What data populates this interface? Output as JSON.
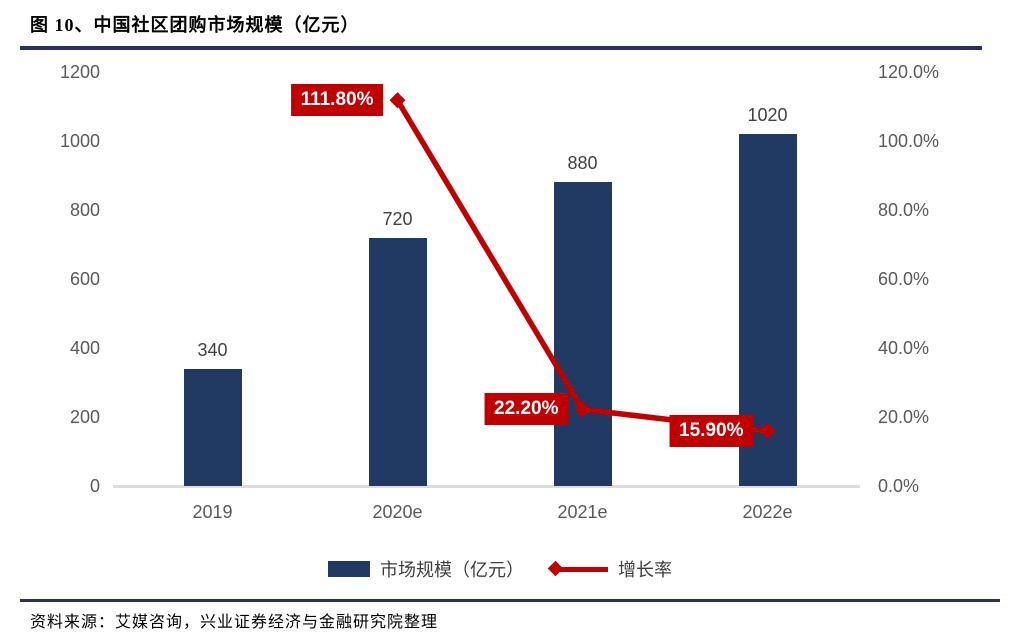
{
  "figure": {
    "title": "图 10、中国社区团购市场规模（亿元）",
    "source": "资料来源：艾媒咨询，兴业证券经济与金融研究院整理"
  },
  "colors": {
    "bar": "#213A63",
    "line": "#C00000",
    "rule": "#2B2F5E",
    "axis_line": "#DCDCDC",
    "tick_text": "#595959",
    "value_text": "#404040"
  },
  "chart_data": {
    "type": "bar",
    "title": "中国社区团购市场规模（亿元）",
    "categories": [
      "2019",
      "2020e",
      "2021e",
      "2022e"
    ],
    "series": [
      {
        "name": "市场规模（亿元）",
        "type": "bar",
        "axis": "left",
        "values": [
          340,
          720,
          880,
          1020
        ]
      },
      {
        "name": "增长率",
        "type": "line",
        "axis": "right",
        "values": [
          null,
          111.8,
          22.2,
          15.9
        ]
      }
    ],
    "bar_value_labels": [
      "340",
      "720",
      "880",
      "1020"
    ],
    "line_point_labels": [
      null,
      "111.80%",
      "22.20%",
      "15.90%"
    ],
    "left_axis": {
      "min": 0,
      "max": 1200,
      "tick_labels": [
        "1200",
        "1000",
        "800",
        "600",
        "400",
        "200",
        "0"
      ]
    },
    "right_axis": {
      "min": 0,
      "max": 120,
      "tick_labels": [
        "120.0%",
        "100.0%",
        "80.0%",
        "60.0%",
        "40.0%",
        "20.0%",
        "0.0%"
      ]
    },
    "grid": false,
    "legend_position": "bottom",
    "legend": [
      {
        "label": "市场规模（亿元）",
        "marker": "bar"
      },
      {
        "label": "增长率",
        "marker": "line-diamond"
      }
    ]
  }
}
